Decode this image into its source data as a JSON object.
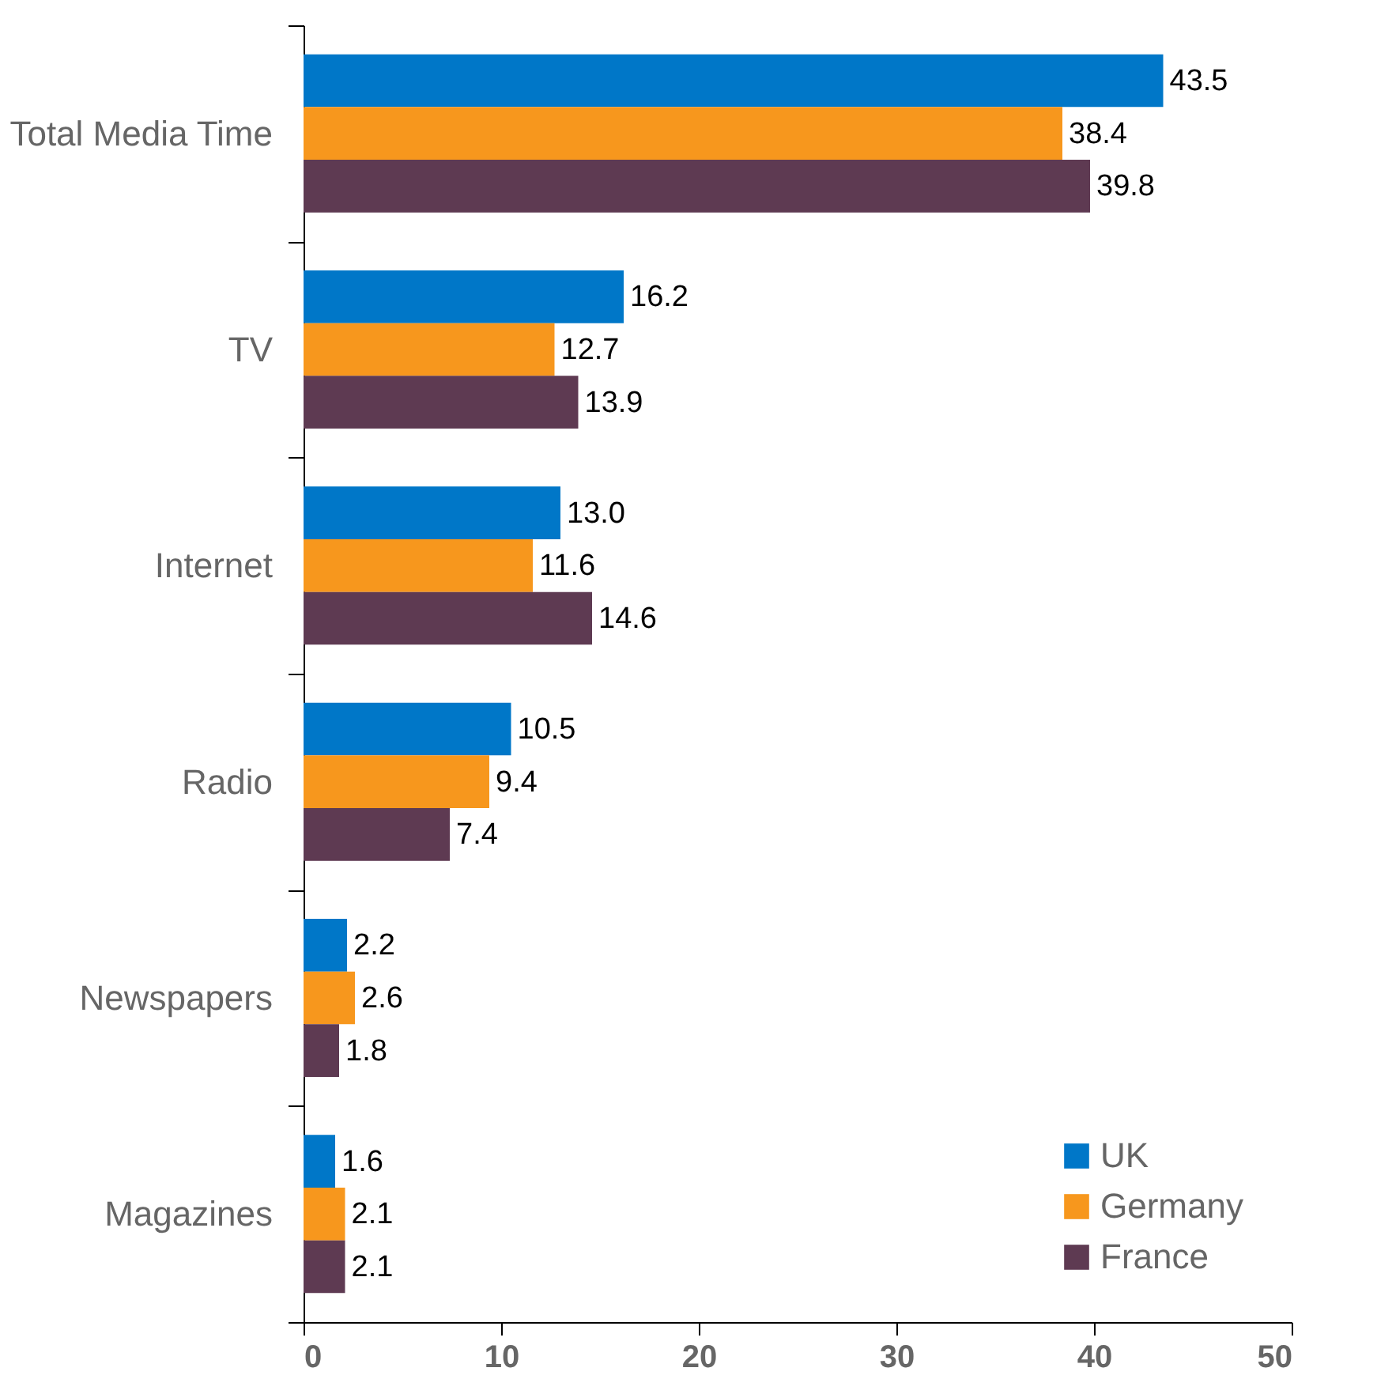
{
  "chart_data": {
    "type": "bar",
    "orientation": "horizontal",
    "categories": [
      "Total Media Time",
      "TV",
      "Internet",
      "Radio",
      "Newspapers",
      "Magazines"
    ],
    "series": [
      {
        "name": "UK",
        "color": "#0077c8",
        "values": [
          43.5,
          16.2,
          13.0,
          10.5,
          2.2,
          1.6
        ],
        "value_labels": [
          "43.5",
          "16.2",
          "13.0",
          "10.5",
          "2.2",
          "1.6"
        ]
      },
      {
        "name": "Germany",
        "color": "#f7971d",
        "values": [
          38.4,
          12.7,
          11.6,
          9.4,
          2.6,
          2.1
        ],
        "value_labels": [
          "38.4",
          "12.7",
          "11.6",
          "9.4",
          "2.6",
          "2.1"
        ]
      },
      {
        "name": "France",
        "color": "#5e3a52",
        "values": [
          39.8,
          13.9,
          14.6,
          7.4,
          1.8,
          2.1
        ],
        "value_labels": [
          "39.8",
          "13.9",
          "14.6",
          "7.4",
          "1.8",
          "2.1"
        ]
      }
    ],
    "xlim": [
      0,
      50
    ],
    "xticks": [
      0,
      10,
      20,
      30,
      40,
      50
    ],
    "grid": false,
    "legend": "bottom right"
  }
}
